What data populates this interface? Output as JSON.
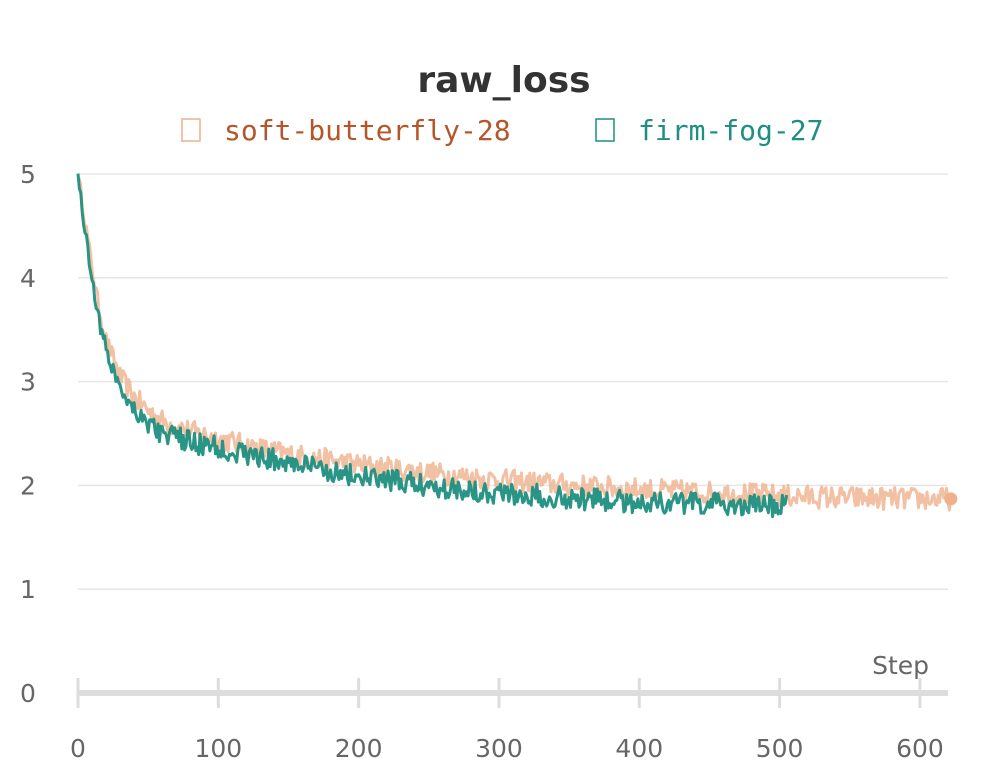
{
  "chart_data": {
    "type": "line",
    "title": "raw_loss",
    "xlabel": "Step",
    "ylabel": "",
    "xlim": [
      0,
      620
    ],
    "ylim": [
      0,
      5
    ],
    "x_ticks": [
      0,
      100,
      200,
      300,
      400,
      500,
      600
    ],
    "y_ticks": [
      0,
      1,
      2,
      3,
      4,
      5
    ],
    "grid": true,
    "legend_position": "top",
    "series": [
      {
        "name": "soft-butterfly-28",
        "color": "#efb08c",
        "legend_text_color": "#b5562a",
        "end_marker": true,
        "x": [
          0,
          5,
          10,
          15,
          20,
          30,
          40,
          50,
          60,
          80,
          100,
          120,
          150,
          180,
          200,
          250,
          300,
          350,
          400,
          450,
          500,
          550,
          600,
          622
        ],
        "y": [
          5.0,
          4.55,
          4.1,
          3.7,
          3.4,
          3.05,
          2.85,
          2.72,
          2.62,
          2.52,
          2.45,
          2.38,
          2.3,
          2.24,
          2.2,
          2.12,
          2.05,
          2.0,
          1.96,
          1.93,
          1.9,
          1.88,
          1.87,
          1.87
        ]
      },
      {
        "name": "firm-fog-27",
        "color": "#1e8f80",
        "legend_text_color": "#1e8f80",
        "end_marker": false,
        "x": [
          0,
          5,
          10,
          15,
          20,
          30,
          40,
          50,
          60,
          80,
          100,
          120,
          150,
          180,
          200,
          250,
          300,
          350,
          400,
          450,
          500,
          505
        ],
        "y": [
          5.0,
          4.45,
          4.0,
          3.6,
          3.3,
          2.95,
          2.75,
          2.6,
          2.5,
          2.42,
          2.36,
          2.3,
          2.22,
          2.14,
          2.08,
          2.0,
          1.93,
          1.88,
          1.84,
          1.82,
          1.8,
          1.8
        ]
      }
    ]
  }
}
